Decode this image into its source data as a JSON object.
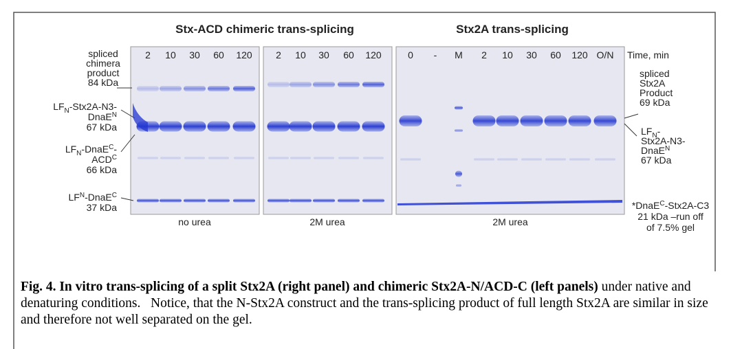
{
  "figure": {
    "panel_titles": [
      "Stx-ACD chimeric trans-splicing",
      "Stx2A trans-splicing"
    ],
    "lanes": [
      [
        "2",
        "10",
        "30",
        "60",
        "120"
      ],
      [
        "2",
        "10",
        "30",
        "60",
        "120"
      ],
      [
        "0",
        "-",
        "M",
        "2",
        "10",
        "30",
        "60",
        "120",
        "O/N"
      ]
    ],
    "time_label": "Time, min",
    "left_labels": [
      [
        [
          "spliced"
        ],
        [
          "chimera"
        ],
        [
          "product"
        ],
        [
          "84 kDa"
        ]
      ],
      [
        [
          "LF",
          "N",
          "-Stx2A-N3-"
        ],
        [
          "DnaE",
          "N"
        ],
        [
          "67 kDa"
        ]
      ],
      [
        [
          "LF",
          "N",
          "-DnaE",
          "C",
          "-"
        ],
        [
          "ACD",
          "C"
        ],
        [
          "66 kDa"
        ]
      ],
      [
        [
          "LF",
          "N",
          "-DnaE",
          "C"
        ],
        [
          "37 kDa"
        ]
      ]
    ],
    "right_labels": [
      [
        [
          "spliced"
        ],
        [
          "Stx2A"
        ],
        [
          "Product"
        ],
        [
          "69 kDa"
        ]
      ],
      [
        [
          "LF",
          "N",
          "-"
        ],
        [
          "Stx2A-N3-"
        ],
        [
          "DnaE",
          "N"
        ],
        [
          "67 kDa"
        ]
      ],
      [
        [
          "*DnaE",
          "C",
          "-Stx2A-C3"
        ],
        [
          "21 kDa –run off"
        ],
        [
          "of 7.5% gel"
        ]
      ]
    ],
    "conditions": [
      "no urea",
      "2M urea",
      "2M urea"
    ]
  },
  "caption": {
    "bold": "Fig. 4. In vitro trans-splicing of a split Stx2A (right panel) and chimeric Stx2A-N/ACD-C (left panels)",
    "text": " under native and denaturing conditions.   Notice, that the N-Stx2A construct and the trans-splicing product of full length Stx2A are similar in size and therefore not well separated on the gel."
  }
}
